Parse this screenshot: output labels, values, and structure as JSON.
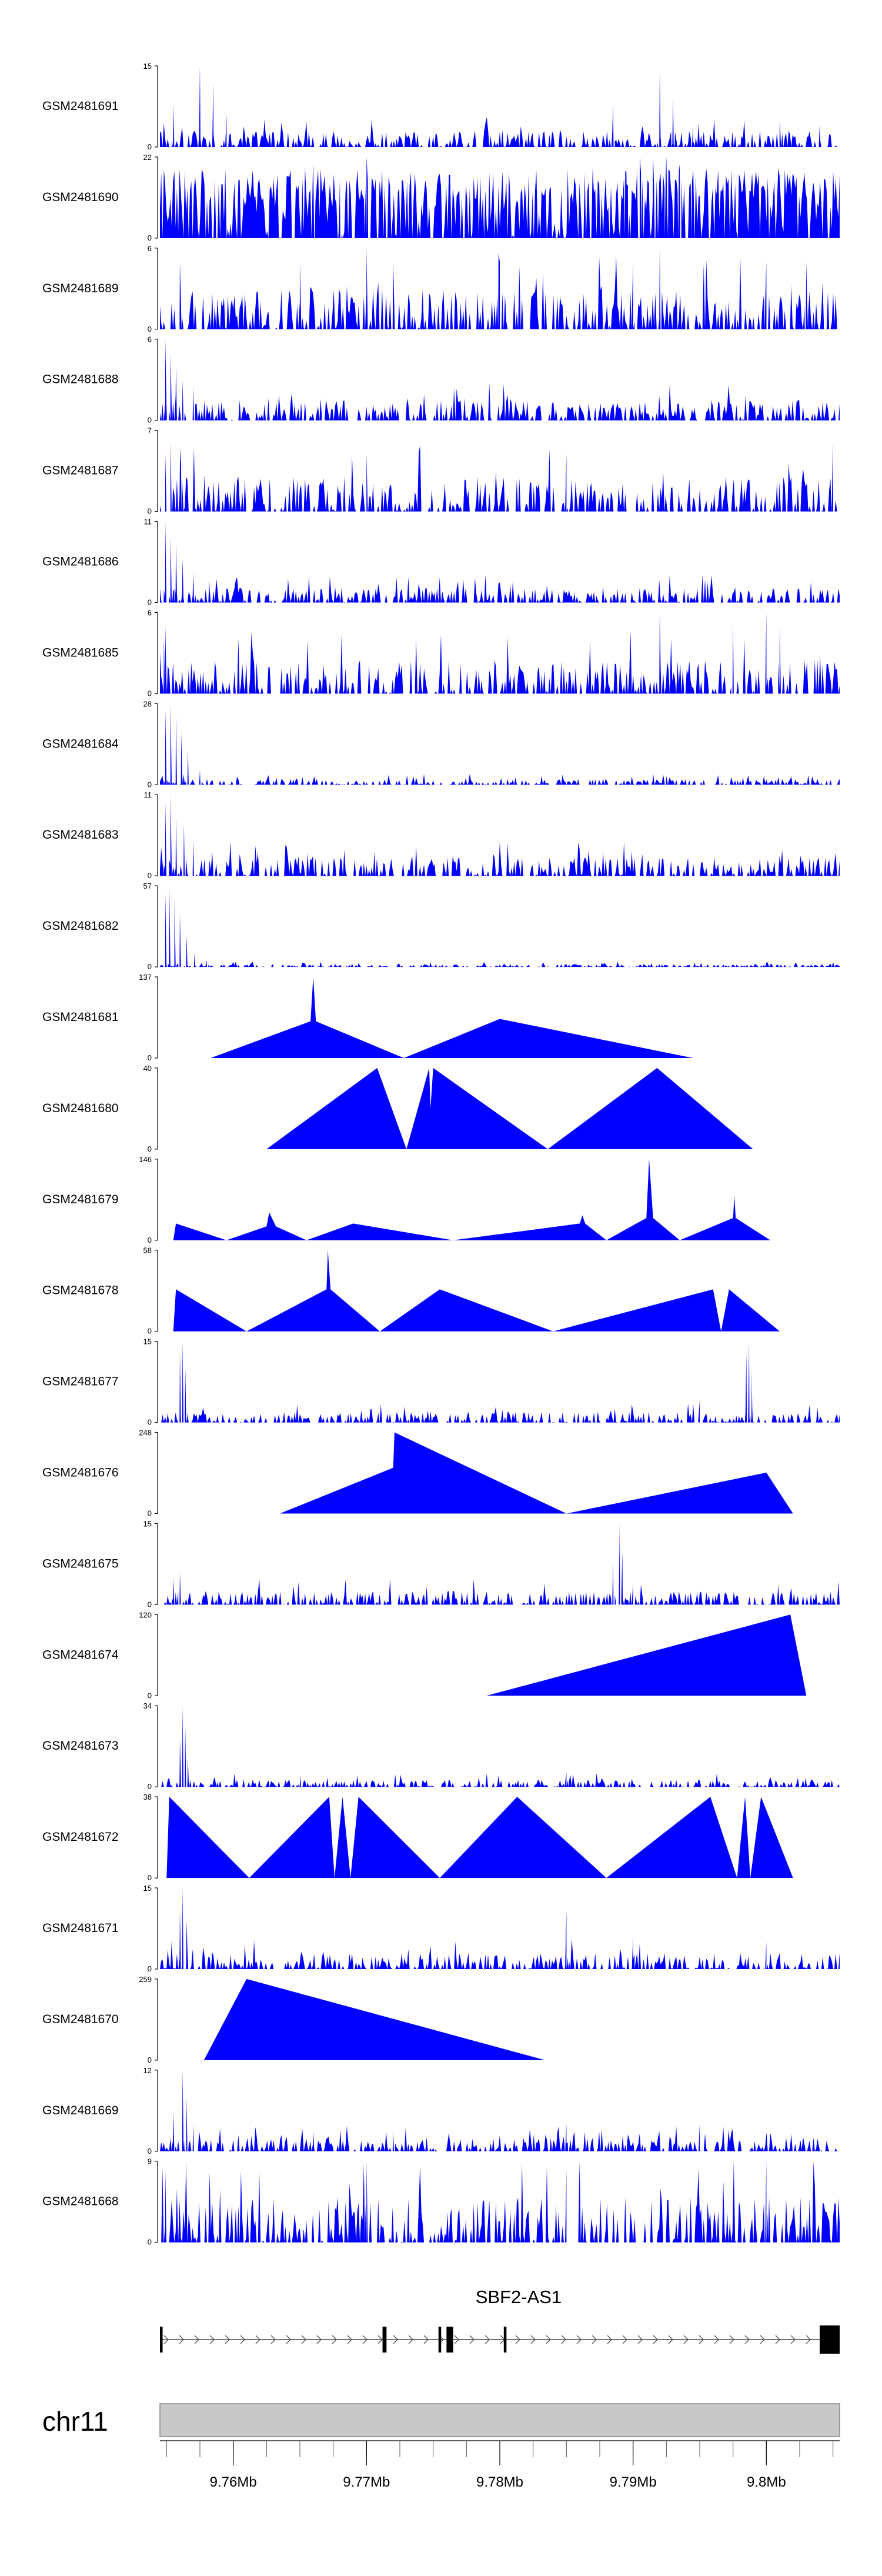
{
  "colors": {
    "signal": "#0000ff",
    "axis": "#000000",
    "ideogram": "#c8c8c8",
    "ideogram_border": "#888888",
    "text": "#000000",
    "gene": "#000000"
  },
  "chart_data": {
    "type": "area",
    "title": "",
    "genome": "chr11",
    "xrange_mb": [
      9.7545,
      9.8055
    ],
    "tracks": [
      {
        "name": "GSM2481691",
        "ymax": 15,
        "baseline": 3,
        "density": 0.035,
        "spikes": [
          [
            9.7555,
            8
          ],
          [
            9.7575,
            15
          ],
          [
            9.7585,
            12
          ],
          [
            9.7595,
            6
          ],
          [
            9.7885,
            8
          ],
          [
            9.792,
            14
          ],
          [
            9.793,
            9
          ],
          [
            9.7945,
            4
          ],
          [
            9.801,
            5
          ],
          [
            9.804,
            4
          ]
        ]
      },
      {
        "name": "GSM2481690",
        "ymax": 22,
        "baseline": 10,
        "density": 0.55,
        "spikes": [
          [
            9.766,
            20
          ],
          [
            9.768,
            16
          ],
          [
            9.77,
            22
          ],
          [
            9.7895,
            18
          ],
          [
            9.7905,
            22
          ],
          [
            9.7915,
            22
          ],
          [
            9.7925,
            22
          ],
          [
            9.7935,
            20
          ],
          [
            9.7945,
            18
          ]
        ]
      },
      {
        "name": "GSM2481689",
        "ymax": 6,
        "baseline": 3,
        "density": 0.03,
        "spikes": [
          [
            9.756,
            5
          ],
          [
            9.765,
            5
          ],
          [
            9.77,
            6
          ],
          [
            9.772,
            5
          ],
          [
            9.78,
            5
          ],
          [
            9.79,
            5
          ],
          [
            9.792,
            6
          ],
          [
            9.8,
            5
          ],
          [
            9.803,
            5
          ]
        ]
      },
      {
        "name": "GSM2481688",
        "ymax": 6,
        "baseline": 1.5,
        "density": 0.05,
        "spikes": [
          [
            9.7549,
            6
          ],
          [
            9.7553,
            5
          ],
          [
            9.7557,
            4
          ],
          [
            9.7562,
            3
          ],
          [
            9.757,
            2.5
          ]
        ]
      },
      {
        "name": "GSM2481687",
        "ymax": 7,
        "baseline": 3,
        "density": 0.025,
        "spikes": [
          [
            9.7549,
            5
          ],
          [
            9.7553,
            6
          ],
          [
            9.756,
            4
          ],
          [
            9.77,
            5
          ],
          [
            9.785,
            5
          ],
          [
            9.805,
            6
          ]
        ]
      },
      {
        "name": "GSM2481686",
        "ymax": 11,
        "baseline": 2,
        "density": 0.06,
        "spikes": [
          [
            9.7549,
            11
          ],
          [
            9.7553,
            9
          ],
          [
            9.7557,
            8
          ],
          [
            9.7562,
            6
          ],
          [
            9.757,
            4
          ],
          [
            9.7582,
            3
          ]
        ]
      },
      {
        "name": "GSM2481685",
        "ymax": 6,
        "baseline": 2.5,
        "density": 0.03,
        "spikes": [
          [
            9.7549,
            5
          ],
          [
            9.792,
            6
          ],
          [
            9.7975,
            5
          ],
          [
            9.8,
            6
          ],
          [
            9.801,
            5
          ]
        ]
      },
      {
        "name": "GSM2481684",
        "ymax": 28,
        "baseline": 2,
        "density": 0.06,
        "spikes": [
          [
            9.7549,
            26
          ],
          [
            9.7553,
            28
          ],
          [
            9.7557,
            24
          ],
          [
            9.7561,
            18
          ],
          [
            9.7566,
            12
          ],
          [
            9.7575,
            5
          ],
          [
            9.7915,
            4
          ],
          [
            9.7925,
            3
          ]
        ]
      },
      {
        "name": "GSM2481683",
        "ymax": 11,
        "baseline": 2.5,
        "density": 0.05,
        "spikes": [
          [
            9.7549,
            10
          ],
          [
            9.7553,
            11
          ],
          [
            9.7557,
            8
          ],
          [
            9.7563,
            7
          ],
          [
            9.757,
            5
          ]
        ]
      },
      {
        "name": "GSM2481682",
        "ymax": 57,
        "baseline": 2,
        "density": 0.07,
        "spikes": [
          [
            9.7549,
            52
          ],
          [
            9.7552,
            57
          ],
          [
            9.7556,
            48
          ],
          [
            9.756,
            38
          ],
          [
            9.7565,
            22
          ],
          [
            9.7571,
            10
          ],
          [
            9.758,
            5
          ]
        ]
      },
      {
        "name": "GSM2481681",
        "ymax": 137,
        "peaks": [
          [
            9.7583,
            0
          ],
          [
            9.7658,
            62
          ],
          [
            9.766,
            137
          ],
          [
            9.7662,
            62
          ],
          [
            9.7728,
            0
          ],
          [
            9.78,
            66
          ],
          [
            9.7945,
            0
          ]
        ]
      },
      {
        "name": "GSM2481680",
        "ymax": 40,
        "peaks": [
          [
            9.7625,
            0
          ],
          [
            9.7708,
            40
          ],
          [
            9.773,
            0
          ],
          [
            9.7747,
            40
          ],
          [
            9.7748,
            20
          ],
          [
            9.775,
            40
          ],
          [
            9.7836,
            0
          ],
          [
            9.7918,
            40
          ],
          [
            9.799,
            0
          ]
        ]
      },
      {
        "name": "GSM2481679",
        "ymax": 146,
        "peaks": [
          [
            9.7555,
            0
          ],
          [
            9.7557,
            30
          ],
          [
            9.7595,
            0
          ],
          [
            9.7625,
            25
          ],
          [
            9.7627,
            50
          ],
          [
            9.7632,
            25
          ],
          [
            9.7655,
            0
          ],
          [
            9.769,
            30
          ],
          [
            9.7765,
            0
          ],
          [
            9.786,
            30
          ],
          [
            9.7862,
            45
          ],
          [
            9.7864,
            30
          ],
          [
            9.788,
            0
          ],
          [
            9.791,
            40
          ],
          [
            9.7912,
            146
          ],
          [
            9.7915,
            40
          ],
          [
            9.7935,
            0
          ],
          [
            9.7975,
            40
          ],
          [
            9.7976,
            80
          ],
          [
            9.7977,
            40
          ],
          [
            9.8003,
            0
          ]
        ]
      },
      {
        "name": "GSM2481678",
        "ymax": 58,
        "peaks": [
          [
            9.7555,
            0
          ],
          [
            9.7557,
            30
          ],
          [
            9.761,
            0
          ],
          [
            9.767,
            30
          ],
          [
            9.7671,
            58
          ],
          [
            9.7673,
            30
          ],
          [
            9.771,
            0
          ],
          [
            9.7755,
            30
          ],
          [
            9.784,
            0
          ],
          [
            9.796,
            30
          ],
          [
            9.7966,
            0
          ],
          [
            9.7972,
            30
          ],
          [
            9.801,
            0
          ]
        ]
      },
      {
        "name": "GSM2481677",
        "ymax": 15,
        "baseline": 2,
        "density": 0.04,
        "spikes": [
          [
            9.756,
            13
          ],
          [
            9.7562,
            15
          ],
          [
            9.7564,
            10
          ],
          [
            9.7985,
            13
          ],
          [
            9.7987,
            15
          ],
          [
            9.7989,
            10
          ],
          [
            9.795,
            4
          ],
          [
            9.799,
            5
          ]
        ]
      },
      {
        "name": "GSM2481676",
        "ymax": 248,
        "peaks": [
          [
            9.7635,
            0
          ],
          [
            9.772,
            140
          ],
          [
            9.7721,
            248
          ],
          [
            9.785,
            0
          ],
          [
            9.8,
            125
          ],
          [
            9.802,
            0
          ]
        ]
      },
      {
        "name": "GSM2481675",
        "ymax": 15,
        "baseline": 2.5,
        "density": 0.04,
        "spikes": [
          [
            9.7555,
            5
          ],
          [
            9.756,
            6
          ],
          [
            9.7885,
            8
          ],
          [
            9.789,
            15
          ],
          [
            9.7892,
            10
          ],
          [
            9.79,
            4
          ]
        ]
      },
      {
        "name": "GSM2481674",
        "ymax": 120,
        "peaks": [
          [
            9.779,
            0
          ],
          [
            9.8018,
            120
          ],
          [
            9.803,
            0
          ]
        ]
      },
      {
        "name": "GSM2481673",
        "ymax": 34,
        "baseline": 3,
        "density": 0.06,
        "spikes": [
          [
            9.756,
            20
          ],
          [
            9.7562,
            34
          ],
          [
            9.7564,
            25
          ],
          [
            9.7566,
            12
          ],
          [
            9.765,
            5
          ],
          [
            9.785,
            6
          ]
        ]
      },
      {
        "name": "GSM2481672",
        "ymax": 38,
        "peaks": [
          [
            9.755,
            0
          ],
          [
            9.7552,
            38
          ],
          [
            9.7612,
            0
          ],
          [
            9.7672,
            38
          ],
          [
            9.7676,
            0
          ],
          [
            9.7682,
            38
          ],
          [
            9.7688,
            0
          ],
          [
            9.7694,
            38
          ],
          [
            9.7755,
            0
          ],
          [
            9.7813,
            38
          ],
          [
            9.788,
            0
          ],
          [
            9.7958,
            38
          ],
          [
            9.7978,
            0
          ],
          [
            9.7984,
            38
          ],
          [
            9.7988,
            0
          ],
          [
            9.7996,
            38
          ],
          [
            9.802,
            0
          ]
        ]
      },
      {
        "name": "GSM2481671",
        "ymax": 15,
        "baseline": 3,
        "density": 0.025,
        "spikes": [
          [
            9.756,
            11
          ],
          [
            9.7562,
            15
          ],
          [
            9.7565,
            9
          ],
          [
            9.785,
            11
          ],
          [
            9.79,
            6
          ],
          [
            9.8,
            5
          ]
        ]
      },
      {
        "name": "GSM2481670",
        "ymax": 259,
        "peaks": [
          [
            9.7578,
            0
          ],
          [
            9.761,
            259
          ],
          [
            9.7834,
            0
          ]
        ]
      },
      {
        "name": "GSM2481669",
        "ymax": 12,
        "baseline": 2,
        "density": 0.06,
        "spikes": [
          [
            9.7555,
            6
          ],
          [
            9.7562,
            12
          ],
          [
            9.7565,
            8
          ],
          [
            9.757,
            4
          ],
          [
            9.766,
            3
          ],
          [
            9.772,
            3
          ],
          [
            9.785,
            4
          ],
          [
            9.795,
            4
          ]
        ]
      },
      {
        "name": "GSM2481668",
        "ymax": 9,
        "baseline": 5,
        "density": 0.03,
        "spikes": [
          [
            9.7549,
            8
          ],
          [
            9.77,
            9
          ],
          [
            9.785,
            8
          ],
          [
            9.8,
            9
          ]
        ]
      }
    ],
    "gene": {
      "name": "SBF2-AS1",
      "start": 9.7545,
      "end": 9.8055,
      "strand": "+",
      "exons": [
        [
          9.7545,
          9.7547
        ],
        [
          9.7712,
          9.7715
        ],
        [
          9.7754,
          9.7756
        ],
        [
          9.776,
          9.7765
        ],
        [
          9.7803,
          9.7805
        ],
        [
          9.804,
          9.8055
        ]
      ]
    },
    "axis": {
      "ticks": [
        9.76,
        9.77,
        9.78,
        9.79,
        9.8
      ],
      "tick_labels": [
        "9.76Mb",
        "9.77Mb",
        "9.78Mb",
        "9.79Mb",
        "9.8Mb"
      ],
      "minor_step": 0.0025
    }
  }
}
